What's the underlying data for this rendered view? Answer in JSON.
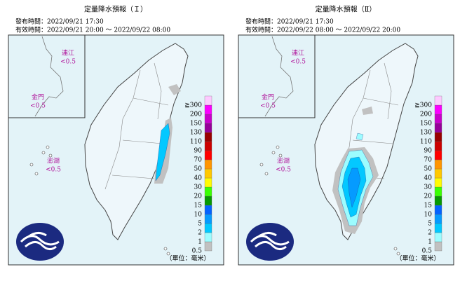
{
  "panels": [
    {
      "title": "定量降水預報（Ｉ）",
      "issued": "發布時間：2022/09/21 17:30",
      "valid": "有效時間：2022/09/21 20:00 ～ 2022/09/22 08:00",
      "regions": [
        {
          "name": "連江",
          "value": "<0.5"
        },
        {
          "name": "金門",
          "value": "<0.5"
        },
        {
          "name": "澎湖",
          "value": "<0.5"
        }
      ],
      "unit": "（單位：毫米）"
    },
    {
      "title": "定量降水預報（Ⅱ）",
      "issued": "發布時間：2022/09/21 17:30",
      "valid": "有效時間：2022/09/22 08:00 ～ 2022/09/22 20:00",
      "regions": [
        {
          "name": "連江",
          "value": "<0.5"
        },
        {
          "name": "金門",
          "value": "<0.5"
        },
        {
          "name": "澎湖",
          "value": "<0.5"
        }
      ],
      "unit": "（單位：毫米）"
    }
  ],
  "legend": [
    {
      "label": "0.5",
      "color": "#c1c1c1"
    },
    {
      "label": "1",
      "color": "#9cfcff"
    },
    {
      "label": "2",
      "color": "#03c8ff"
    },
    {
      "label": "5",
      "color": "#059bff"
    },
    {
      "label": "10",
      "color": "#0363ff"
    },
    {
      "label": "15",
      "color": "#059902"
    },
    {
      "label": "20",
      "color": "#39ff03"
    },
    {
      "label": "30",
      "color": "#fffb03"
    },
    {
      "label": "40",
      "color": "#ffc800"
    },
    {
      "label": "50",
      "color": "#ff9500"
    },
    {
      "label": "70",
      "color": "#ff0000"
    },
    {
      "label": "90",
      "color": "#cc0000"
    },
    {
      "label": "110",
      "color": "#990000"
    },
    {
      "label": "130",
      "color": "#960099"
    },
    {
      "label": "150",
      "color": "#c900cc"
    },
    {
      "label": "200",
      "color": "#fb00ff"
    },
    {
      "label": "≧300",
      "color": "#fdc9ff"
    }
  ]
}
